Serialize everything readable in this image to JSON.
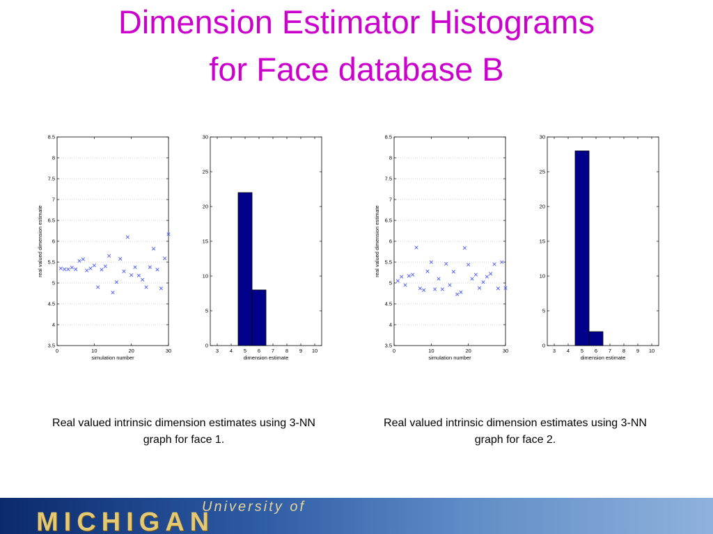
{
  "title": {
    "line1": "Dimension Estimator Histograms",
    "line2": "for Face database B"
  },
  "captions": [
    "Real valued intrinsic dimension estimates using 3-NN graph for face 1.",
    "Real valued intrinsic dimension estimates using 3-NN graph for face 2."
  ],
  "footer": {
    "logo_small": "University of",
    "logo_big": "MICHIGAN"
  },
  "chart_data": [
    {
      "type": "scatter",
      "panel": "face 1 estimates",
      "xlabel": "simulation number",
      "ylabel": "real valued dimension estimate",
      "xlim": [
        0,
        30
      ],
      "ylim": [
        3.5,
        8.5
      ],
      "xticks": [
        0,
        10,
        20,
        30
      ],
      "yticks": [
        3.5,
        4,
        4.5,
        5,
        5.5,
        6,
        6.5,
        7,
        7.5,
        8,
        8.5
      ],
      "grid": "horizontal dotted",
      "marker": "x",
      "color": "#4a5cff",
      "x": [
        1,
        2,
        3,
        4,
        5,
        6,
        7,
        8,
        9,
        10,
        11,
        12,
        13,
        14,
        15,
        16,
        17,
        18,
        19,
        20,
        21,
        22,
        23,
        24,
        25,
        26,
        27,
        28,
        29,
        30
      ],
      "y": [
        5.35,
        5.33,
        5.33,
        5.37,
        5.33,
        5.53,
        5.57,
        5.3,
        5.35,
        5.42,
        4.9,
        5.32,
        5.4,
        5.65,
        4.77,
        5.02,
        5.58,
        5.28,
        6.1,
        5.19,
        5.38,
        5.18,
        5.08,
        4.9,
        5.38,
        5.82,
        5.32,
        4.87,
        5.59,
        6.17
      ]
    },
    {
      "type": "bar",
      "panel": "face 1 histogram",
      "xlabel": "dimension estimate",
      "ylabel": "",
      "xlim": [
        2.5,
        10.5
      ],
      "ylim": [
        0,
        30
      ],
      "xticks": [
        3,
        4,
        5,
        6,
        7,
        8,
        9,
        10
      ],
      "yticks": [
        0,
        5,
        10,
        15,
        20,
        25,
        30
      ],
      "color": "#00008b",
      "categories": [
        5,
        6
      ],
      "values": [
        22,
        8
      ]
    },
    {
      "type": "scatter",
      "panel": "face 2 estimates",
      "xlabel": "simulation number",
      "ylabel": "real valued dimension estimate",
      "xlim": [
        0,
        30
      ],
      "ylim": [
        3.5,
        8.5
      ],
      "xticks": [
        0,
        10,
        20,
        30
      ],
      "yticks": [
        3.5,
        4,
        4.5,
        5,
        5.5,
        6,
        6.5,
        7,
        7.5,
        8,
        8.5
      ],
      "grid": "horizontal dotted",
      "marker": "x",
      "color": "#4a5cff",
      "x": [
        1,
        2,
        3,
        4,
        5,
        6,
        7,
        8,
        9,
        10,
        11,
        12,
        13,
        14,
        15,
        16,
        17,
        18,
        19,
        20,
        21,
        22,
        23,
        24,
        25,
        26,
        27,
        28,
        29,
        30
      ],
      "y": [
        5.05,
        5.15,
        4.95,
        5.17,
        5.2,
        5.85,
        4.87,
        4.83,
        5.28,
        5.5,
        4.85,
        5.1,
        4.85,
        5.46,
        4.95,
        5.27,
        4.73,
        4.78,
        5.84,
        5.44,
        5.1,
        5.2,
        4.88,
        5.02,
        5.15,
        5.22,
        5.45,
        4.87,
        5.5,
        4.88
      ]
    },
    {
      "type": "bar",
      "panel": "face 2 histogram",
      "xlabel": "dimension estimate",
      "ylabel": "",
      "xlim": [
        2.5,
        10.5
      ],
      "ylim": [
        0,
        30
      ],
      "xticks": [
        3,
        4,
        5,
        6,
        7,
        8,
        9,
        10
      ],
      "yticks": [
        0,
        5,
        10,
        15,
        20,
        25,
        30
      ],
      "color": "#00008b",
      "categories": [
        5,
        6
      ],
      "values": [
        28,
        2
      ]
    }
  ]
}
